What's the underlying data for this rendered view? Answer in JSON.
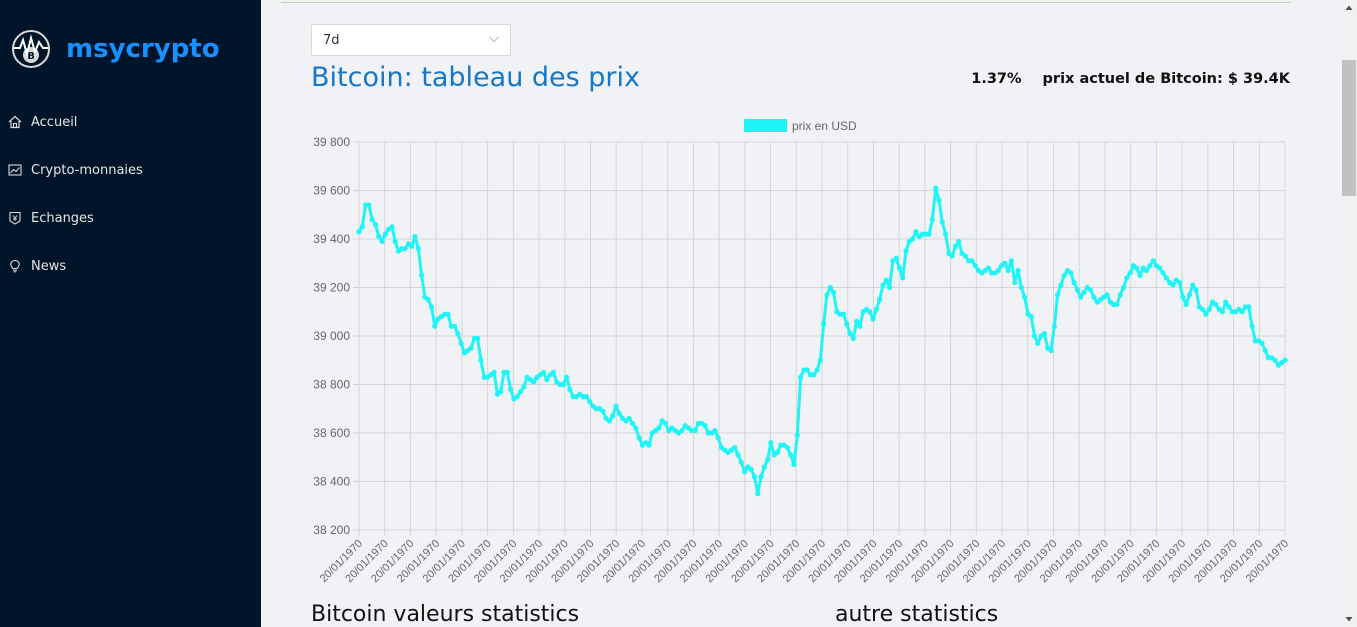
{
  "app": {
    "name": "msycrypto"
  },
  "sidebar": {
    "items": [
      {
        "label": "Accueil",
        "icon": "home-icon"
      },
      {
        "label": "Crypto-monnaies",
        "icon": "fund-icon"
      },
      {
        "label": "Echanges",
        "icon": "money-collect-icon"
      },
      {
        "label": "News",
        "icon": "bulb-icon"
      }
    ]
  },
  "header": {
    "period_select": "7d",
    "title": "Bitcoin: tableau des prix",
    "change": "1.37%",
    "current_price": "prix actuel de Bitcoin: $ 39.4K"
  },
  "chart_data": {
    "type": "line",
    "color": "#1ff4f7",
    "legend": "prix en USD",
    "ylim": [
      38200,
      39800
    ],
    "yticks": [
      "39 800",
      "39 600",
      "39 400",
      "39 200",
      "39 000",
      "38 800",
      "38 600",
      "38 400",
      "38 200"
    ],
    "xtick_label": "20/01/1970",
    "xtick_count": 37,
    "grid": true,
    "series": [
      {
        "values": [
          39430,
          39450,
          39540,
          39540,
          39480,
          39460,
          39410,
          39390,
          39420,
          39440,
          39450,
          39390,
          39350,
          39360,
          39360,
          39380,
          39370,
          39410,
          39360,
          39250,
          39160,
          39150,
          39120,
          39040,
          39070,
          39080,
          39090,
          39090,
          39040,
          39040,
          39010,
          38970,
          38930,
          38940,
          38950,
          38990,
          38990,
          38900,
          38830,
          38830,
          38840,
          38850,
          38760,
          38770,
          38850,
          38850,
          38780,
          38740,
          38750,
          38770,
          38790,
          38830,
          38820,
          38810,
          38830,
          38840,
          38850,
          38820,
          38840,
          38850,
          38810,
          38800,
          38800,
          38830,
          38780,
          38750,
          38750,
          38760,
          38750,
          38750,
          38730,
          38710,
          38700,
          38700,
          38690,
          38660,
          38650,
          38670,
          38710,
          38680,
          38660,
          38650,
          38660,
          38640,
          38620,
          38580,
          38550,
          38560,
          38550,
          38600,
          38610,
          38620,
          38650,
          38640,
          38610,
          38620,
          38610,
          38600,
          38610,
          38630,
          38620,
          38610,
          38610,
          38640,
          38640,
          38630,
          38600,
          38600,
          38610,
          38580,
          38540,
          38530,
          38520,
          38530,
          38540,
          38510,
          38480,
          38440,
          38460,
          38450,
          38420,
          38350,
          38420,
          38460,
          38490,
          38560,
          38510,
          38520,
          38550,
          38550,
          38540,
          38510,
          38470,
          38590,
          38830,
          38860,
          38860,
          38840,
          38840,
          38860,
          38900,
          39050,
          39170,
          39200,
          39180,
          39100,
          39090,
          39090,
          39050,
          39010,
          38990,
          39060,
          39040,
          39100,
          39110,
          39100,
          39070,
          39110,
          39150,
          39210,
          39230,
          39200,
          39310,
          39320,
          39280,
          39240,
          39350,
          39390,
          39400,
          39430,
          39410,
          39420,
          39420,
          39420,
          39480,
          39610,
          39560,
          39470,
          39420,
          39340,
          39330,
          39370,
          39390,
          39340,
          39330,
          39310,
          39310,
          39290,
          39270,
          39260,
          39270,
          39280,
          39260,
          39260,
          39270,
          39290,
          39300,
          39270,
          39310,
          39220,
          39270,
          39200,
          39160,
          39090,
          39080,
          39000,
          38970,
          39000,
          39010,
          38950,
          38940,
          39040,
          39170,
          39210,
          39250,
          39270,
          39260,
          39220,
          39190,
          39160,
          39180,
          39200,
          39190,
          39160,
          39140,
          39150,
          39160,
          39170,
          39140,
          39130,
          39130,
          39170,
          39200,
          39240,
          39260,
          39290,
          39280,
          39250,
          39280,
          39270,
          39290,
          39310,
          39290,
          39280,
          39260,
          39240,
          39220,
          39210,
          39230,
          39220,
          39160,
          39130,
          39170,
          39210,
          39190,
          39120,
          39110,
          39090,
          39110,
          39140,
          39130,
          39110,
          39100,
          39140,
          39120,
          39100,
          39100,
          39110,
          39100,
          39120,
          39120,
          39040,
          38980,
          38980,
          38970,
          38940,
          38910,
          38910,
          38900,
          38880,
          38890,
          38900
        ]
      }
    ]
  },
  "sections": {
    "left": "Bitcoin valeurs statistics",
    "right": "autre statistics"
  }
}
